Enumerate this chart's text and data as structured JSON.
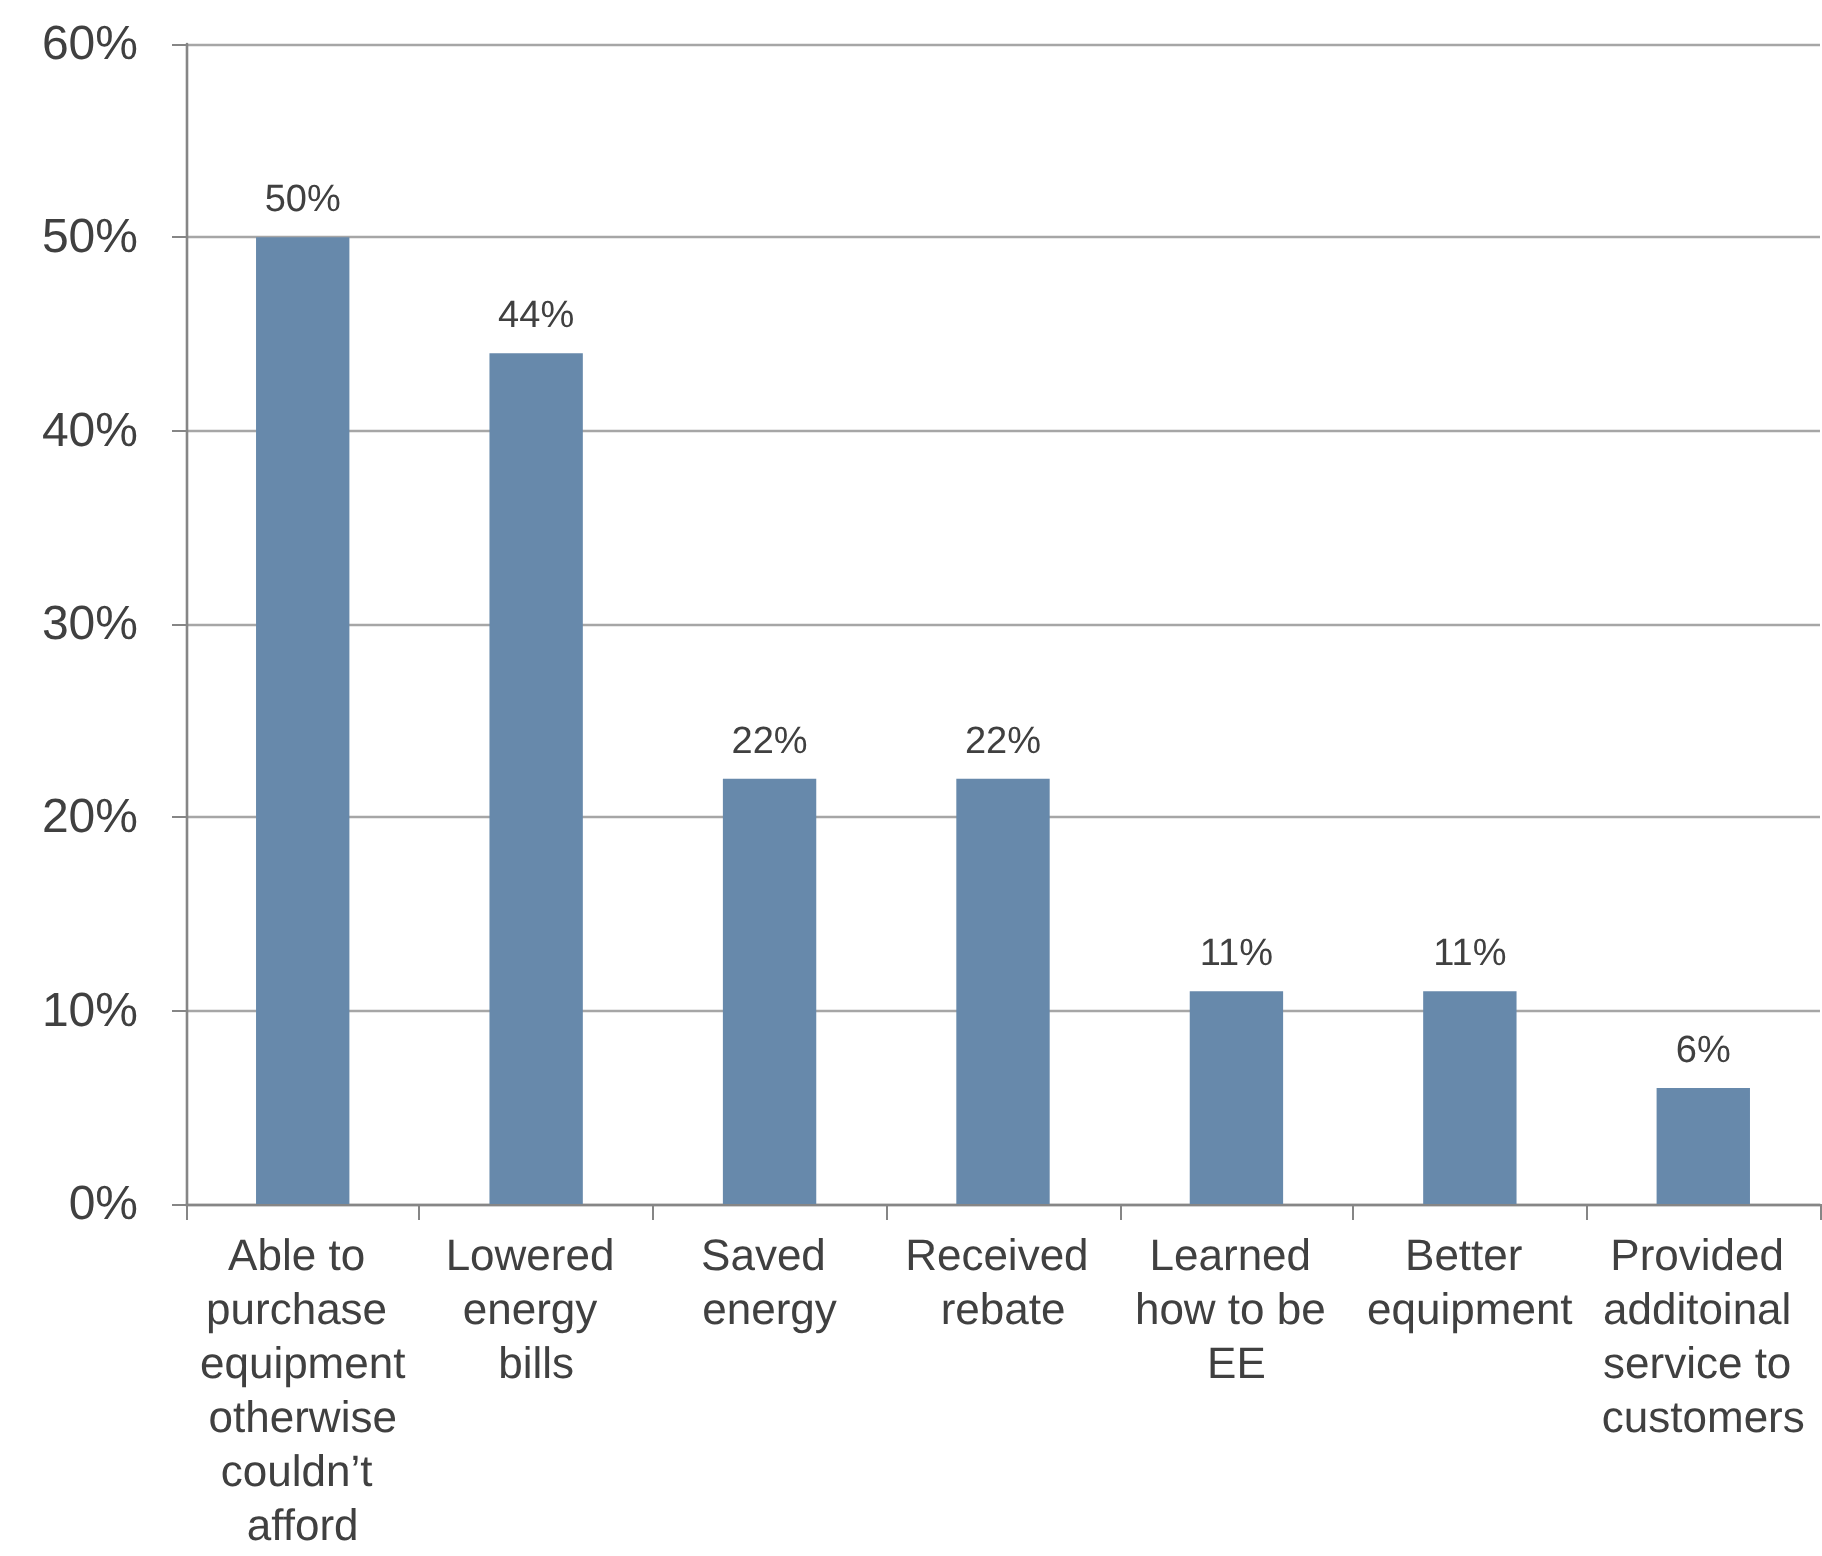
{
  "chart_data": {
    "type": "bar",
    "categories": [
      "Able to purchase equipment otherwise couldn’t afford",
      "Lowered energy bills",
      "Saved energy",
      "Received rebate",
      "Learned how to be EE",
      "Better equipment",
      "Provided additoinal service to customers"
    ],
    "values": [
      50,
      44,
      22,
      22,
      11,
      11,
      6
    ],
    "value_labels": [
      "50%",
      "44%",
      "22%",
      "22%",
      "11%",
      "11%",
      "6%"
    ],
    "color": "#6789ab",
    "ylim": [
      0,
      60
    ],
    "yticks": [
      {
        "value": 0,
        "label": "0%"
      },
      {
        "value": 10,
        "label": "10%"
      },
      {
        "value": 20,
        "label": "20%"
      },
      {
        "value": 30,
        "label": "30%"
      },
      {
        "value": 40,
        "label": "40%"
      },
      {
        "value": 50,
        "label": "50%"
      },
      {
        "value": 60,
        "label": "60%"
      }
    ],
    "grid": "y"
  }
}
